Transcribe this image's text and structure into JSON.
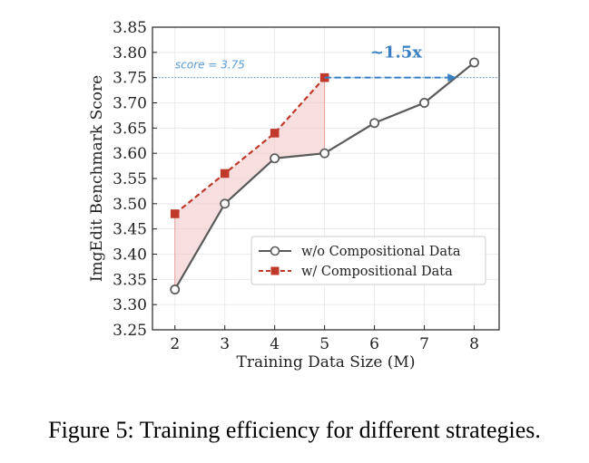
{
  "caption": "Figure 5: Training efficiency for different strategies.",
  "chart_data": {
    "type": "line",
    "xlabel": "Training Data Size (M)",
    "ylabel": "ImgEdit Benchmark Score",
    "xlim": [
      1.55,
      8.5
    ],
    "ylim": [
      3.25,
      3.85
    ],
    "xticks": [
      2,
      3,
      4,
      5,
      6,
      7,
      8
    ],
    "yticks": [
      3.25,
      3.3,
      3.35,
      3.4,
      3.45,
      3.5,
      3.55,
      3.6,
      3.65,
      3.7,
      3.75,
      3.8,
      3.85
    ],
    "grid": true,
    "legend_position": "lower-right",
    "series": [
      {
        "name": "w/o Compositional Data",
        "x": [
          2,
          3,
          4,
          5,
          6,
          7,
          8
        ],
        "values": [
          3.33,
          3.5,
          3.59,
          3.6,
          3.66,
          3.7,
          3.78
        ],
        "color": "#5a5a5a",
        "marker": "circle",
        "line_style": "solid"
      },
      {
        "name": "w/ Compositional Data",
        "x": [
          2,
          3,
          4,
          5
        ],
        "values": [
          3.48,
          3.56,
          3.64,
          3.75
        ],
        "color": "#c0392b",
        "marker": "square",
        "line_style": "dashed"
      }
    ],
    "fill_between_color": "#f2c4c4",
    "reference_line": {
      "value": 3.75,
      "label": "score = 3.75",
      "color": "#5b9bd5"
    },
    "speedup_arrow": {
      "from_x": 5,
      "to_x": 7.65,
      "y": 3.75,
      "label": "~1.5x",
      "color": "#3a7fc1"
    }
  }
}
